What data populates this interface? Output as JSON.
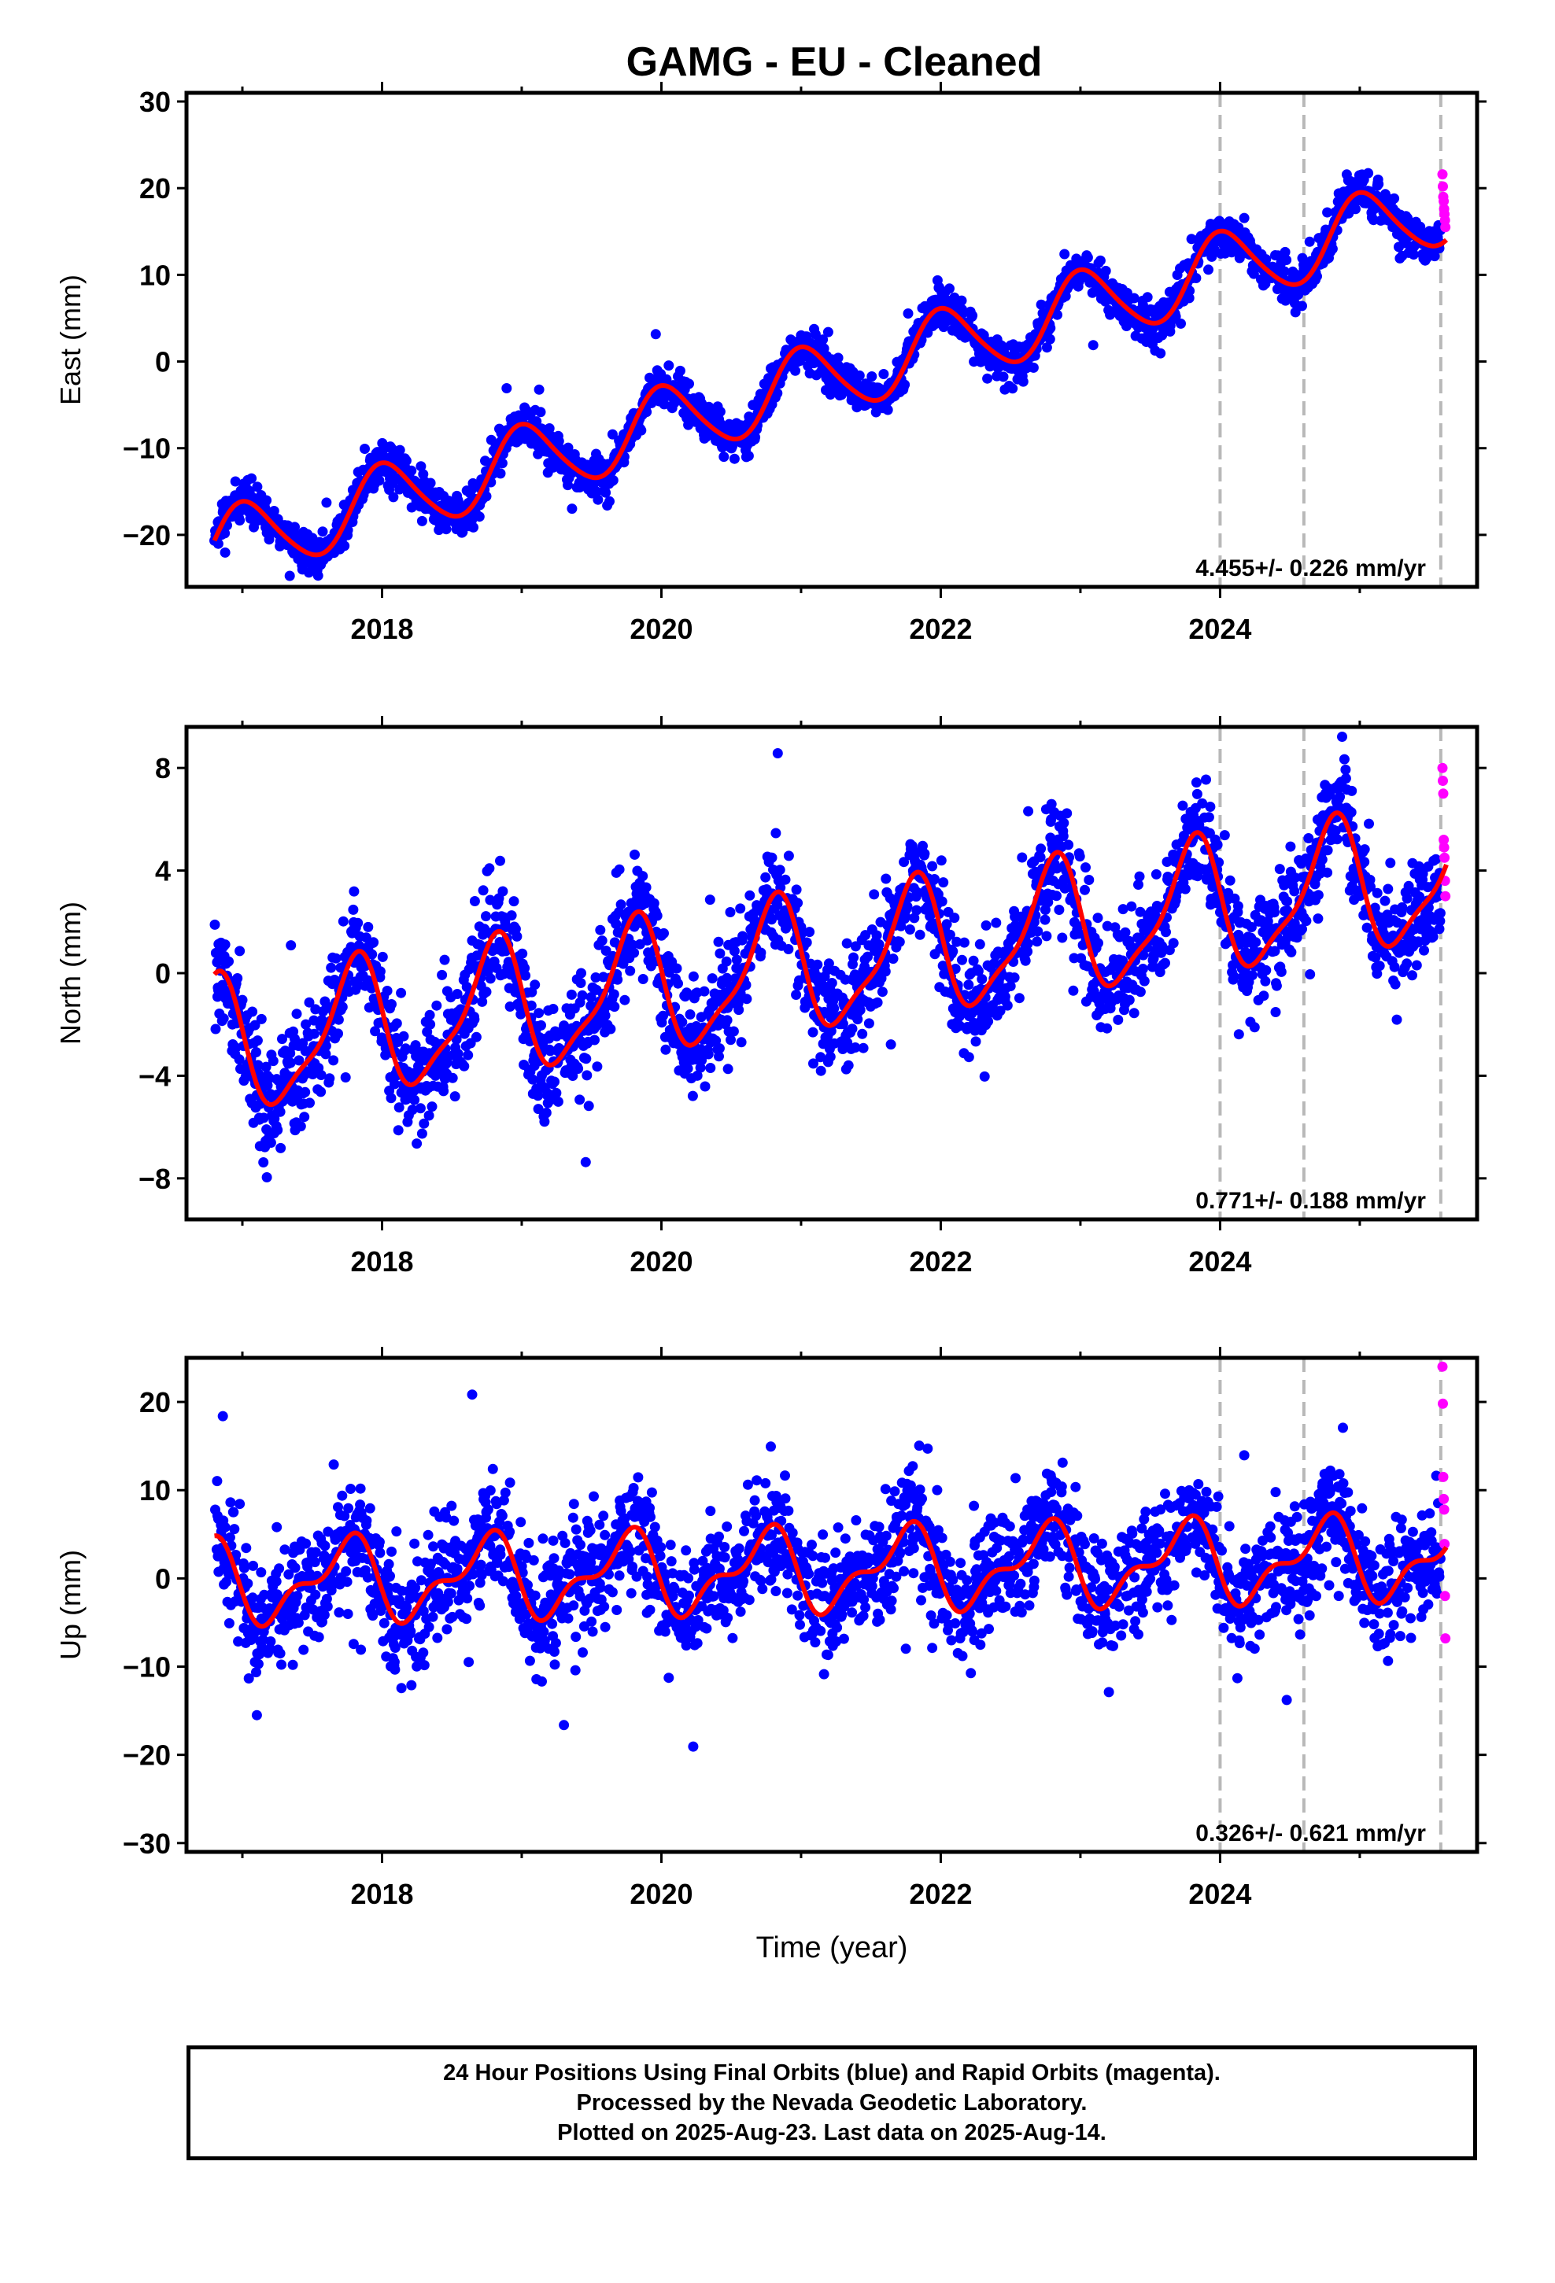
{
  "colors": {
    "final_orbits": "#0000ff",
    "rapid_orbits": "#ff00ff",
    "model_fit": "#ff0000",
    "event_lines": "#b8b8b8"
  },
  "footer": {
    "line1": "24 Hour Positions Using Final Orbits (blue) and Rapid Orbits (magenta).",
    "line2": "Processed by the Nevada Geodetic Laboratory.",
    "line3": "Plotted on 2025-Aug-23. Last data on 2025-Aug-14."
  },
  "chart_data": {
    "type": "scatter",
    "title": "GAMG  - EU - Cleaned",
    "xlabel": "Time (year)",
    "xlim": [
      2016.6,
      2025.84
    ],
    "x_ticks": [
      2018,
      2020,
      2022,
      2024
    ],
    "x_tick_labels": [
      "2018",
      "2020",
      "2022",
      "2024"
    ],
    "data_start": 2016.8,
    "last_data": 2025.62,
    "rapid_start": 2025.58,
    "event_lines": [
      2024.0,
      2024.6,
      2025.58
    ],
    "panels": [
      {
        "name": "east",
        "ylabel": "East (mm)",
        "ylim": [
          -26,
          31
        ],
        "y_ticks": [
          -20,
          -10,
          0,
          10,
          20,
          30
        ],
        "y_tick_labels": [
          "−20",
          "−10",
          "0",
          "10",
          "20",
          "30"
        ],
        "velocity": "4.455+/- 0.226 mm/yr",
        "model": {
          "t0": 2016.8,
          "y0": -21.5,
          "rate": 4.455,
          "annual_amp": 4.2,
          "annual_phase": 0.2,
          "semi_amp": 0.5,
          "semi_phase": 0.0,
          "step_2024": 0.0
        },
        "noise_sd": 1.2,
        "outlier_fraction": 0.01,
        "outlier_sd": 4,
        "point_fraction": 0.75,
        "rapid_values": [
          21.6,
          20.2,
          19.0,
          18.5,
          17.6,
          17.0,
          16.3,
          15.5
        ]
      },
      {
        "name": "north",
        "ylabel": "North (mm)",
        "ylim": [
          -9.6,
          9.6
        ],
        "y_ticks": [
          -8,
          -4,
          0,
          4,
          8
        ],
        "y_tick_labels": [
          "−8",
          "−4",
          "0",
          "4",
          "8"
        ],
        "velocity": "0.771+/- 0.188 mm/yr",
        "model": {
          "t0": 2016.8,
          "y0": -3.0,
          "rate": 0.771,
          "annual_amp": 2.5,
          "annual_phase": 1.6,
          "semi_amp": 0.7,
          "semi_phase": 0.7,
          "step_2024": 0.0
        },
        "noise_sd": 1.1,
        "outlier_fraction": 0.02,
        "outlier_sd": 2.5,
        "point_fraction": 0.75,
        "rapid_values": [
          8.0,
          7.5,
          7.0,
          5.2,
          4.9,
          4.5,
          3.6,
          3.0
        ]
      },
      {
        "name": "up",
        "ylabel": "Up (mm)",
        "ylim": [
          -31,
          25
        ],
        "y_ticks": [
          -30,
          -20,
          -10,
          0,
          10,
          20
        ],
        "y_tick_labels": [
          "−30",
          "−20",
          "−10",
          "0",
          "10",
          "20"
        ],
        "velocity": "0.326+/- 0.621 mm/yr",
        "model": {
          "t0": 2016.8,
          "y0": -0.5,
          "rate": 0.326,
          "annual_amp": 4.0,
          "annual_phase": 2.0,
          "semi_amp": 2.0,
          "semi_phase": 1.0,
          "step_2024": 0.0
        },
        "noise_sd": 3.2,
        "outlier_fraction": 0.015,
        "outlier_sd": 9,
        "point_fraction": 0.75,
        "rapid_values": [
          24.0,
          19.8,
          11.5,
          9.0,
          7.8,
          3.9,
          -2.0,
          -6.8
        ]
      }
    ]
  }
}
